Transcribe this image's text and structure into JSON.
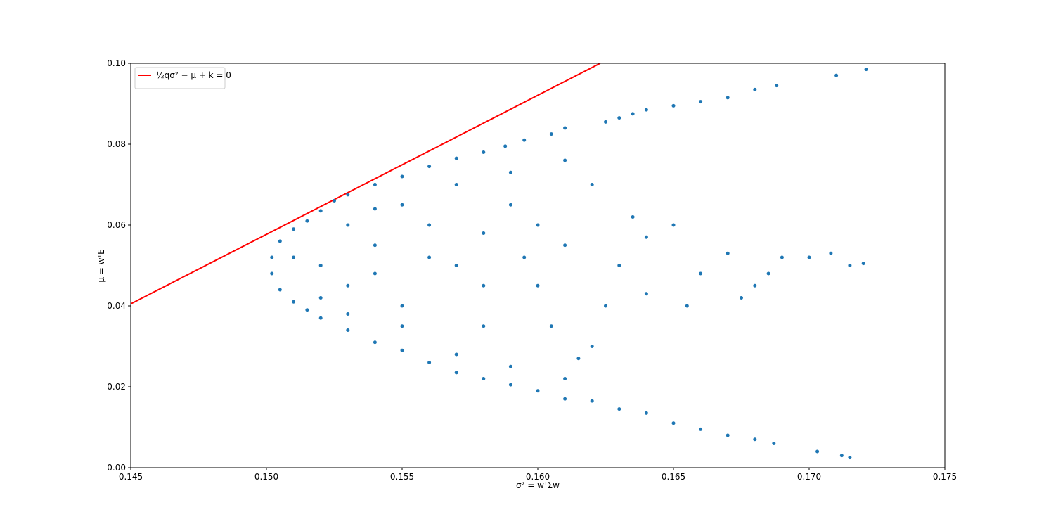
{
  "chart_data": {
    "type": "scatter",
    "xlabel": "σ² = wᵀΣw",
    "ylabel": "μ = wᵀE",
    "xlim": [
      0.145,
      0.175
    ],
    "xticks": [
      0.145,
      {
        "value": 0.15,
        "label": "0.150"
      },
      0.155,
      {
        "value": 0.16,
        "label": "0.160"
      },
      0.165,
      {
        "value": 0.17,
        "label": "0.170"
      },
      0.175
    ],
    "ylim": [
      0,
      0.1
    ],
    "yticks": [
      {
        "value": 0,
        "label": "0.00"
      },
      0.02,
      0.04,
      0.06,
      0.08,
      {
        "value": 0.1,
        "label": "0.10"
      }
    ],
    "legend": "upper left",
    "series": [
      {
        "type": "line",
        "name": "½qσ² − μ + k = 0",
        "color": "#ff0000",
        "x": [
          0.145,
          0.1623
        ],
        "values": [
          0.0405,
          0.1
        ]
      },
      {
        "type": "scatter",
        "color": "#1f77b4",
        "x": [
          0.1502,
          0.1505,
          0.151,
          0.1515,
          0.152,
          0.1525,
          0.153,
          0.154,
          0.155,
          0.156,
          0.157,
          0.158,
          0.1588,
          0.1595,
          0.1605,
          0.161,
          0.1625,
          0.163,
          0.1635,
          0.164,
          0.165,
          0.166,
          0.167,
          0.168,
          0.1688,
          0.171,
          0.1721,
          0.1502,
          0.1505,
          0.151,
          0.1515,
          0.152,
          0.153,
          0.154,
          0.155,
          0.156,
          0.157,
          0.158,
          0.159,
          0.16,
          0.161,
          0.162,
          0.163,
          0.164,
          0.165,
          0.166,
          0.167,
          0.168,
          0.1687,
          0.1703,
          0.1712,
          0.1715,
          0.152,
          0.153,
          0.154,
          0.155,
          0.156,
          0.157,
          0.158,
          0.159,
          0.16,
          0.161,
          0.162,
          0.162,
          0.163,
          0.164,
          0.164,
          0.165,
          0.166,
          0.167,
          0.168,
          0.169,
          0.17,
          0.1708,
          0.1715,
          0.172,
          0.153,
          0.155,
          0.157,
          0.159,
          0.161,
          0.155,
          0.157,
          0.159,
          0.161,
          0.1615,
          0.158,
          0.156,
          0.16,
          0.1625,
          0.1635,
          0.1655,
          0.1675,
          0.1685,
          0.154,
          0.151,
          0.152,
          0.153,
          0.154,
          0.158,
          0.1605,
          0.1595
        ],
        "values": [
          0.052,
          0.056,
          0.059,
          0.061,
          0.0635,
          0.066,
          0.0675,
          0.07,
          0.072,
          0.0745,
          0.0765,
          0.078,
          0.0795,
          0.081,
          0.0825,
          0.084,
          0.0855,
          0.0865,
          0.0875,
          0.0885,
          0.0895,
          0.0905,
          0.0915,
          0.0935,
          0.0945,
          0.097,
          0.0985,
          0.048,
          0.044,
          0.041,
          0.039,
          0.037,
          0.034,
          0.031,
          0.029,
          0.026,
          0.0235,
          0.022,
          0.0205,
          0.019,
          0.017,
          0.0165,
          0.0145,
          0.0135,
          0.011,
          0.0095,
          0.008,
          0.007,
          0.006,
          0.004,
          0.003,
          0.0025,
          0.05,
          0.045,
          0.055,
          0.04,
          0.06,
          0.05,
          0.035,
          0.065,
          0.045,
          0.055,
          0.03,
          0.07,
          0.05,
          0.057,
          0.043,
          0.06,
          0.048,
          0.053,
          0.045,
          0.052,
          0.052,
          0.053,
          0.05,
          0.0505,
          0.06,
          0.065,
          0.07,
          0.073,
          0.076,
          0.035,
          0.028,
          0.025,
          0.022,
          0.027,
          0.045,
          0.052,
          0.06,
          0.04,
          0.062,
          0.04,
          0.042,
          0.048,
          0.048,
          0.052,
          0.042,
          0.038,
          0.064,
          0.058,
          0.035,
          0.052
        ]
      }
    ]
  }
}
